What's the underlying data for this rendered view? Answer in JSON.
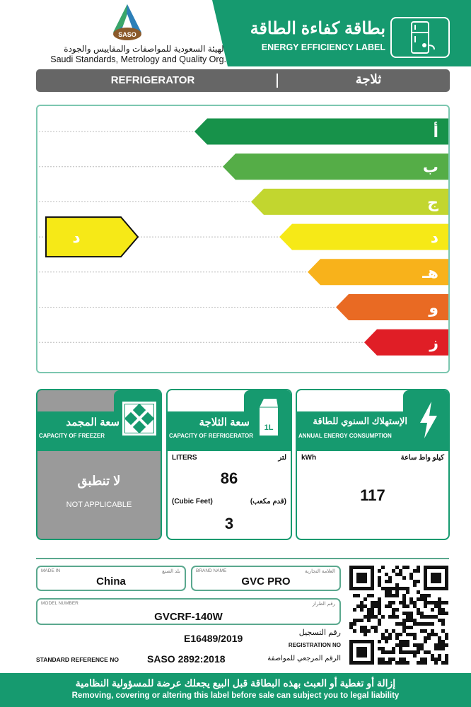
{
  "header": {
    "logo_text": "SASO",
    "org_ar": "الهيئة السعودية للمواصفات والمقاييس والجودة",
    "org_en": "Saudi Standards, Metrology and Quality Org.",
    "title_ar": "بطاقة كفاءة الطاقة",
    "title_en": "ENERGY EFFICIENCY LABEL",
    "icon": "fridge-plug-icon",
    "brand_color": "#169a6f"
  },
  "appliance": {
    "type_en": "REFRIGERATOR",
    "type_ar": "ثلاجة"
  },
  "rating": {
    "classes": [
      {
        "label": "أ",
        "color": "#17924a"
      },
      {
        "label": "ب",
        "color": "#55ad47"
      },
      {
        "label": "ج",
        "color": "#c2d62f"
      },
      {
        "label": "د",
        "color": "#f6e917"
      },
      {
        "label": "هـ",
        "color": "#f8b21b"
      },
      {
        "label": "و",
        "color": "#e96a23"
      },
      {
        "label": "ز",
        "color": "#e01e26"
      }
    ],
    "selected_index": 3,
    "selected_label": "د"
  },
  "freezer": {
    "title_ar": "سعة المجمد",
    "title_en": "CAPACITY OF FREEZER",
    "na_ar": "لا تنطبق",
    "na_en": "NOT APPLICABLE",
    "icon": "expand-arrows-icon"
  },
  "fridge": {
    "title_ar": "سعة الثلاجة",
    "title_en": "CAPACITY OF REFRIGERATOR",
    "liters_en": "LITERS",
    "liters_ar": "لتر",
    "liters": "86",
    "cuft_en": "(Cubic Feet)",
    "cuft_ar": "(قدم مكعب)",
    "cuft": "3",
    "icon": "milk-carton-icon",
    "icon_text": "1L"
  },
  "energy": {
    "title_ar": "الإستهلاك السنوي للطاقة",
    "title_en": "ANNUAL ENERGY CONSUMPTION",
    "unit_en": "kWh",
    "unit_ar": "كيلو واط ساعة",
    "value": "117",
    "icon": "lightning-icon"
  },
  "details": {
    "made_in_label": "MADE IN",
    "made_in_label_ar": "بلد الصنع",
    "made_in": "China",
    "brand_label": "BRAND NAME",
    "brand_label_ar": "العلامة التجارية",
    "brand": "GVC PRO",
    "model_label": "MODEL NUMBER",
    "model_label_ar": "رقم الطراز",
    "model": "GVCRF-140W",
    "registration": "E16489/2019",
    "registration_ar": "رقم التسجيل",
    "registration_en": "REGISTRATION NO",
    "standard_en": "STANDARD REFERENCE NO",
    "standard": "SASO 2892:2018",
    "standard_ar": "الرقم المرجعي للمواصفة"
  },
  "footer": {
    "warning_ar": "إزالة أو تغطية أو العبث بهذه البطاقة قبل البيع يجعلك عرضة للمسؤولية النظامية",
    "warning_en": "Removing, covering or altering this label before sale can subject you to legal liability"
  }
}
